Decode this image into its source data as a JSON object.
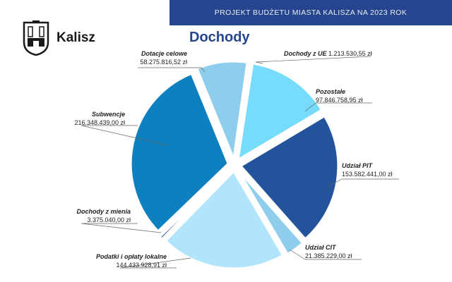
{
  "header": {
    "banner": "PROJEKT BUDŻETU MIASTA KALISZA NA 2023 ROK",
    "city": "Kalisz"
  },
  "chart_data": {
    "type": "pie",
    "title": "Dochody",
    "unit": "zł",
    "slices": [
      {
        "name": "Dochody z UE",
        "value": 1213530.55,
        "label": "1.213.530,55 zł",
        "color": "#25468f"
      },
      {
        "name": "Pozostałe",
        "value": 97846758.95,
        "label": "97.846.758,95 zł",
        "color": "#77dcfc"
      },
      {
        "name": "Udział PIT",
        "value": 153582441.0,
        "label": "153.582.441,00 zł",
        "color": "#22539b"
      },
      {
        "name": "Udział CIT",
        "value": 21385229.0,
        "label": "21.385.229,00 zł",
        "color": "#8ecdeb"
      },
      {
        "name": "Podatki i opłaty lokalne",
        "value": 144433928.91,
        "label": "144.433.928,91 zł",
        "color": "#b1e5fb"
      },
      {
        "name": "Dochody z mienia",
        "value": 3375040.0,
        "label": "3.375.040,00 zł",
        "color": "#25468f"
      },
      {
        "name": "Subwencje",
        "value": 216348439.0,
        "label": "216.348.439,00 zł",
        "color": "#0e80bf"
      },
      {
        "name": "Dotacje celowe",
        "value": 58275816.52,
        "label": "58.275.816,52 zł",
        "color": "#8ecdeb"
      }
    ]
  }
}
